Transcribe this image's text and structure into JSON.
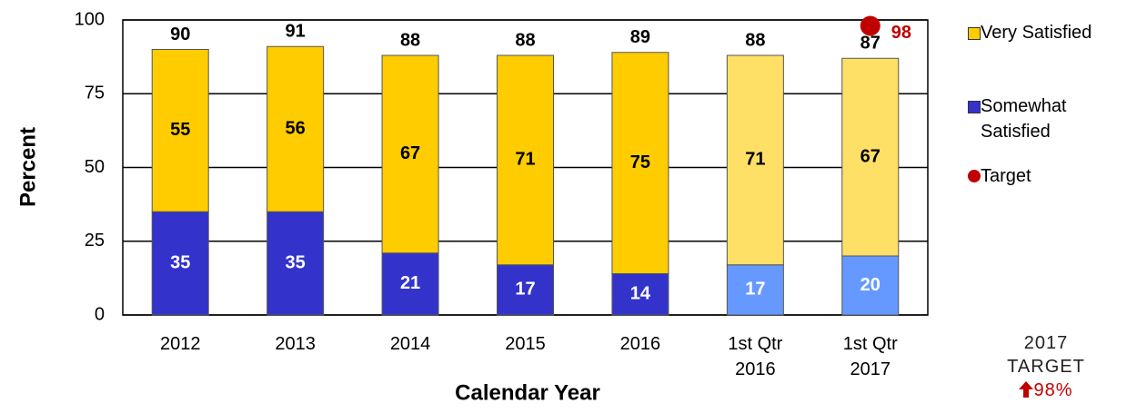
{
  "chart_data": {
    "type": "stacked_bar",
    "y_label": "Percent",
    "x_label": "Calendar Year",
    "categories": [
      "2012",
      "2013",
      "2014",
      "2015",
      "2016",
      "1st Qtr 2016",
      "1st Qtr 2017"
    ],
    "series": [
      {
        "name": "Somewhat Satisfied",
        "color": "#3333cc",
        "colors": [
          "#3333cc",
          "#3333cc",
          "#3333cc",
          "#3333cc",
          "#3333cc",
          "#6699ff",
          "#6699ff"
        ],
        "values": [
          35,
          35,
          21,
          17,
          14,
          17,
          20
        ]
      },
      {
        "name": "Very Satisfied",
        "color": "#ffcc00",
        "colors": [
          "#ffcc00",
          "#ffcc00",
          "#ffcc00",
          "#ffcc00",
          "#ffcc00",
          "#ffe066",
          "#ffe066"
        ],
        "values": [
          55,
          56,
          67,
          71,
          75,
          71,
          67
        ]
      }
    ],
    "totals": [
      90,
      91,
      88,
      88,
      89,
      88,
      87
    ],
    "target": {
      "name": "Target",
      "color": "#c00000",
      "values": [
        null,
        null,
        null,
        null,
        null,
        null,
        98
      ]
    },
    "annotation": {
      "text": "2017 TARGET",
      "value_label": "98%"
    },
    "ylim": [
      0,
      100
    ],
    "yticks": [
      0,
      25,
      50,
      75,
      100
    ],
    "grid": true
  }
}
